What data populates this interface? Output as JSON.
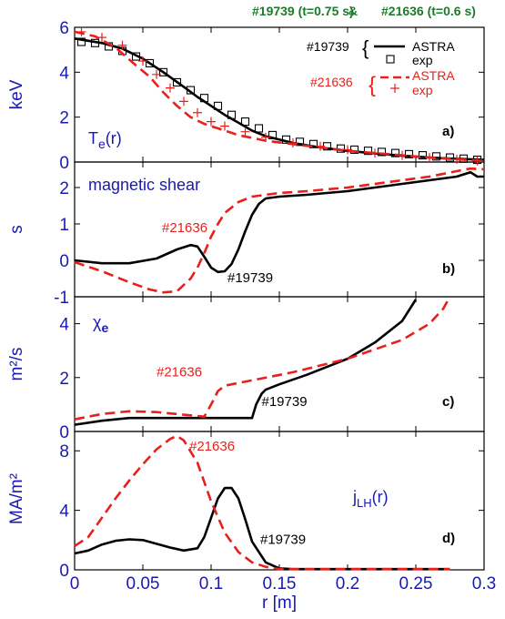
{
  "header": {
    "left": "#19739 (t=0.75 s)",
    "amp": "&",
    "right": "#21636 (t=0.6 s)"
  },
  "legend": {
    "shot_black": "#19739",
    "shot_red": "#21636",
    "brace": "{",
    "astra": "ASTRA",
    "exp": "exp"
  },
  "colors": {
    "black": "#000000",
    "red": "#e8201c",
    "axis": "#1a1ab0",
    "header": "#1e7a2a"
  },
  "chart_data": [
    {
      "id": "a",
      "type": "line",
      "panel_label": "a)",
      "title": "T",
      "title_sub": "e",
      "title_suffix": "(r)",
      "ylabel": "keV",
      "xlim": [
        0,
        0.3
      ],
      "ylim": [
        0,
        6
      ],
      "yticks": [
        "0",
        "2",
        "4",
        "6"
      ],
      "series": [
        {
          "name": "#19739 ASTRA",
          "color": "black",
          "style": "solid",
          "x": [
            0,
            0.02,
            0.035,
            0.05,
            0.065,
            0.08,
            0.09,
            0.1,
            0.11,
            0.12,
            0.13,
            0.14,
            0.16,
            0.18,
            0.2,
            0.22,
            0.24,
            0.26,
            0.28,
            0.3
          ],
          "y": [
            5.5,
            5.3,
            5.05,
            4.6,
            4.0,
            3.35,
            2.9,
            2.5,
            2.1,
            1.75,
            1.4,
            1.15,
            0.85,
            0.65,
            0.5,
            0.38,
            0.28,
            0.2,
            0.14,
            0.1
          ]
        },
        {
          "name": "#19739 exp",
          "color": "black",
          "marker": "square",
          "x": [
            0.005,
            0.015,
            0.025,
            0.035,
            0.045,
            0.055,
            0.065,
            0.075,
            0.085,
            0.095,
            0.105,
            0.115,
            0.125,
            0.135,
            0.145,
            0.155,
            0.165,
            0.175,
            0.185,
            0.195,
            0.205,
            0.215,
            0.225,
            0.235,
            0.245,
            0.255,
            0.265,
            0.275,
            0.285,
            0.295
          ],
          "y": [
            5.35,
            5.3,
            5.15,
            4.95,
            4.7,
            4.4,
            4.0,
            3.55,
            3.2,
            2.85,
            2.5,
            2.1,
            1.8,
            1.5,
            1.2,
            1.0,
            0.9,
            0.8,
            0.7,
            0.6,
            0.55,
            0.5,
            0.45,
            0.4,
            0.35,
            0.3,
            0.25,
            0.2,
            0.15,
            0.1
          ]
        },
        {
          "name": "#21636 ASTRA",
          "color": "red",
          "style": "dashed",
          "x": [
            0,
            0.015,
            0.03,
            0.045,
            0.055,
            0.065,
            0.075,
            0.085,
            0.095,
            0.105,
            0.12,
            0.14,
            0.16,
            0.18,
            0.2,
            0.22,
            0.24,
            0.26,
            0.28,
            0.3
          ],
          "y": [
            5.8,
            5.6,
            5.1,
            4.3,
            3.8,
            3.1,
            2.5,
            2.0,
            1.7,
            1.5,
            1.2,
            0.95,
            0.8,
            0.65,
            0.5,
            0.4,
            0.3,
            0.2,
            0.12,
            0.05
          ]
        },
        {
          "name": "#21636 exp",
          "color": "red",
          "marker": "plus",
          "x": [
            0.005,
            0.02,
            0.035,
            0.05,
            0.06,
            0.07,
            0.08,
            0.09,
            0.1,
            0.11,
            0.125,
            0.14,
            0.16,
            0.18,
            0.2,
            0.22,
            0.24,
            0.26,
            0.28,
            0.295
          ],
          "y": [
            5.8,
            5.55,
            5.2,
            4.5,
            3.9,
            3.3,
            2.7,
            2.2,
            1.8,
            1.6,
            1.35,
            1.1,
            0.85,
            0.7,
            0.55,
            0.4,
            0.3,
            0.2,
            0.12,
            0.05
          ]
        }
      ]
    },
    {
      "id": "b",
      "type": "line",
      "panel_label": "b)",
      "title": "magnetic shear",
      "ylabel": "s",
      "xlim": [
        0,
        0.3
      ],
      "ylim": [
        -1,
        2.7
      ],
      "yticks": [
        "-1",
        "0",
        "1",
        "2"
      ],
      "annotations": [
        {
          "text": "#21636",
          "color": "red",
          "x": 0.064,
          "y": 0.78
        },
        {
          "text": "#19739",
          "color": "black",
          "x": 0.112,
          "y": -0.6
        }
      ],
      "series": [
        {
          "name": "#19739",
          "color": "black",
          "style": "solid",
          "x": [
            0,
            0.02,
            0.04,
            0.06,
            0.075,
            0.085,
            0.09,
            0.095,
            0.1,
            0.105,
            0.11,
            0.115,
            0.12,
            0.125,
            0.13,
            0.135,
            0.14,
            0.15,
            0.17,
            0.2,
            0.23,
            0.26,
            0.28,
            0.29,
            0.295,
            0.3
          ],
          "y": [
            0,
            -0.08,
            -0.08,
            0.05,
            0.3,
            0.42,
            0.38,
            0.1,
            -0.2,
            -0.32,
            -0.3,
            -0.1,
            0.3,
            0.8,
            1.25,
            1.55,
            1.7,
            1.75,
            1.8,
            1.9,
            2.05,
            2.2,
            2.3,
            2.42,
            2.3,
            2.3
          ]
        },
        {
          "name": "#21636",
          "color": "red",
          "style": "dashed",
          "x": [
            0,
            0.02,
            0.04,
            0.055,
            0.065,
            0.075,
            0.085,
            0.09,
            0.095,
            0.1,
            0.105,
            0.11,
            0.12,
            0.13,
            0.14,
            0.15,
            0.17,
            0.2,
            0.23,
            0.26,
            0.28,
            0.29,
            0.3
          ],
          "y": [
            -0.05,
            -0.3,
            -0.6,
            -0.8,
            -0.88,
            -0.85,
            -0.5,
            -0.2,
            0.2,
            0.65,
            1.0,
            1.3,
            1.6,
            1.75,
            1.8,
            1.85,
            1.9,
            2.0,
            2.15,
            2.3,
            2.45,
            2.52,
            2.5
          ]
        }
      ]
    },
    {
      "id": "c",
      "type": "line",
      "panel_label": "c)",
      "title": "χ",
      "title_sub": "e",
      "ylabel": "m²/s",
      "xlim": [
        0,
        0.3
      ],
      "ylim": [
        0,
        5
      ],
      "yticks": [
        "0",
        "2",
        "4"
      ],
      "annotations": [
        {
          "text": "#21636",
          "color": "red",
          "x": 0.06,
          "y": 2.05
        },
        {
          "text": "#19739",
          "color": "black",
          "x": 0.137,
          "y": 0.95
        }
      ],
      "series": [
        {
          "name": "#19739",
          "color": "black",
          "style": "solid",
          "x": [
            0,
            0.02,
            0.04,
            0.06,
            0.08,
            0.1,
            0.12,
            0.13,
            0.133,
            0.137,
            0.14,
            0.15,
            0.17,
            0.2,
            0.22,
            0.24,
            0.25
          ],
          "y": [
            0.25,
            0.4,
            0.5,
            0.5,
            0.5,
            0.5,
            0.5,
            0.5,
            1.0,
            1.4,
            1.55,
            1.75,
            2.1,
            2.7,
            3.3,
            4.1,
            4.9
          ]
        },
        {
          "name": "#21636",
          "color": "red",
          "style": "dashed",
          "x": [
            0,
            0.02,
            0.04,
            0.06,
            0.08,
            0.095,
            0.1,
            0.105,
            0.11,
            0.13,
            0.16,
            0.2,
            0.24,
            0.26,
            0.27,
            0.275
          ],
          "y": [
            0.45,
            0.65,
            0.75,
            0.72,
            0.62,
            0.55,
            1.0,
            1.5,
            1.7,
            1.9,
            2.2,
            2.7,
            3.4,
            4.0,
            4.55,
            5.0
          ]
        }
      ]
    },
    {
      "id": "d",
      "type": "line",
      "panel_label": "d)",
      "title": "j",
      "title_sub": "LH",
      "title_suffix": "(r)",
      "ylabel": "MA/m²",
      "xlabel": "r [m]",
      "xlim": [
        0,
        0.3
      ],
      "ylim": [
        0,
        9.3
      ],
      "yticks": [
        "0",
        "4",
        "8"
      ],
      "xticks": [
        "0",
        "0.05",
        "0.1",
        "0.15",
        "0.2",
        "0.25",
        "0.3"
      ],
      "annotations": [
        {
          "text": "#21636",
          "color": "red",
          "x": 0.084,
          "y": 8.0
        },
        {
          "text": "#19739",
          "color": "black",
          "x": 0.136,
          "y": 1.75
        }
      ],
      "series": [
        {
          "name": "#19739",
          "color": "black",
          "style": "solid",
          "x": [
            0,
            0.01,
            0.02,
            0.03,
            0.04,
            0.05,
            0.06,
            0.07,
            0.08,
            0.09,
            0.095,
            0.1,
            0.105,
            0.11,
            0.115,
            0.12,
            0.125,
            0.13,
            0.14,
            0.15,
            0.16,
            0.2,
            0.25,
            0.275
          ],
          "y": [
            1.1,
            1.3,
            1.7,
            1.95,
            2.05,
            2.0,
            1.75,
            1.5,
            1.3,
            1.45,
            2.2,
            3.5,
            4.8,
            5.5,
            5.5,
            4.8,
            3.4,
            1.9,
            0.5,
            0.1,
            0.05,
            0.05,
            0.05,
            0.05
          ]
        },
        {
          "name": "#21636",
          "color": "red",
          "style": "dashed",
          "x": [
            0,
            0.01,
            0.02,
            0.03,
            0.04,
            0.05,
            0.06,
            0.07,
            0.075,
            0.08,
            0.09,
            0.1,
            0.11,
            0.12,
            0.13,
            0.14,
            0.15,
            0.2,
            0.25,
            0.275
          ],
          "y": [
            1.6,
            2.2,
            3.5,
            4.8,
            6.0,
            7.1,
            8.1,
            8.8,
            9.0,
            8.7,
            7.2,
            4.6,
            2.5,
            1.2,
            0.5,
            0.2,
            0.05,
            0.05,
            0.05,
            0.05
          ]
        }
      ]
    }
  ]
}
